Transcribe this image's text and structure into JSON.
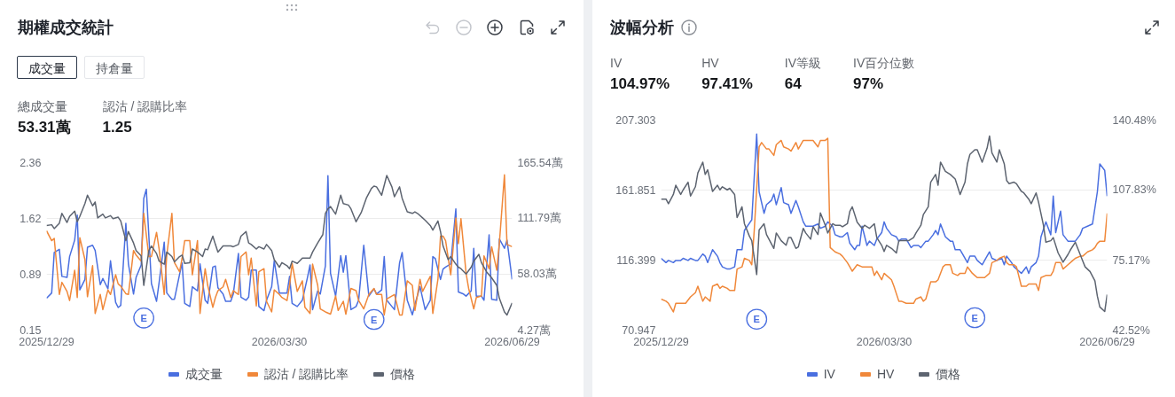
{
  "chart_data": [
    {
      "type": "line",
      "title": "期權成交統計",
      "annotations": [
        "成交量",
        "持倉量",
        "總成交量",
        "53.31萬",
        "認沽 / 認購比率",
        "1.25",
        {
          "text": "E",
          "x": "2026-02-05",
          "y": 0.31
        },
        {
          "text": "E",
          "x": "2026-05-06",
          "y": 0.29
        }
      ],
      "xlim": [
        "2025-12-29",
        "2026-06-29"
      ],
      "xticks": [
        {
          "value": "2025-12-29",
          "label": "2025/12/29"
        },
        {
          "value": "2026-03-30",
          "label": "2026/03/30"
        },
        {
          "value": "2026-06-29",
          "label": "2026/06/29"
        }
      ],
      "ylim": [
        0.15,
        2.36
      ],
      "yticks": [
        0.15,
        0.89,
        1.62,
        2.36
      ],
      "y2lim": [
        4.27,
        165.54
      ],
      "y2ticks": [
        {
          "value": 4.27,
          "label": "4.27萬"
        },
        {
          "value": 58.03,
          "label": "58.03萬"
        },
        {
          "value": 111.79,
          "label": "111.79萬"
        },
        {
          "value": 165.54,
          "label": "165.54萬"
        }
      ],
      "grid": "y",
      "legend": "bottom",
      "series": [
        {
          "name": "成交量",
          "color": "#4a6fe0",
          "axis": "y2",
          "x": [
            "2025-12-29",
            "2025-12-31",
            "2026-01-01",
            "2026-01-03",
            "2026-01-04",
            "2026-01-06",
            "2026-01-07",
            "2026-01-09",
            "2026-01-10",
            "2026-01-11",
            "2026-01-13",
            "2026-01-14",
            "2026-01-16",
            "2026-01-17",
            "2026-01-19",
            "2026-01-20",
            "2026-01-22",
            "2026-01-23",
            "2026-01-25",
            "2026-01-26",
            "2026-01-27",
            "2026-01-29",
            "2026-01-30",
            "2026-02-01",
            "2026-02-02",
            "2026-02-04",
            "2026-02-05",
            "2026-02-06",
            "2026-02-08",
            "2026-02-10",
            "2026-02-11",
            "2026-02-13",
            "2026-02-14",
            "2026-02-16",
            "2026-02-17",
            "2026-02-19",
            "2026-02-20",
            "2026-02-21",
            "2026-02-23",
            "2026-02-24",
            "2026-02-26",
            "2026-02-27",
            "2026-03-01",
            "2026-03-02",
            "2026-03-04",
            "2026-03-05",
            "2026-03-06",
            "2026-03-08",
            "2026-03-09",
            "2026-03-11",
            "2026-03-12",
            "2026-03-14",
            "2026-03-15",
            "2026-03-17",
            "2026-03-18",
            "2026-03-19",
            "2026-03-21",
            "2026-03-22",
            "2026-03-24",
            "2026-03-25",
            "2026-03-27",
            "2026-03-28",
            "2026-03-30",
            "2026-03-31",
            "2026-04-02",
            "2026-04-03",
            "2026-04-04",
            "2026-04-06",
            "2026-04-08",
            "2026-04-10",
            "2026-04-11",
            "2026-04-12",
            "2026-04-14",
            "2026-04-15",
            "2026-04-17",
            "2026-04-18",
            "2026-04-19",
            "2026-04-21",
            "2026-04-23",
            "2026-04-24",
            "2026-04-25",
            "2026-04-27",
            "2026-04-29",
            "2026-04-30",
            "2026-05-02",
            "2026-05-04",
            "2026-05-06",
            "2026-05-07",
            "2026-05-09",
            "2026-05-10",
            "2026-05-11",
            "2026-05-13",
            "2026-05-14",
            "2026-05-16",
            "2026-05-17",
            "2026-05-19",
            "2026-05-21",
            "2026-05-22",
            "2026-05-24",
            "2026-05-26",
            "2026-05-28",
            "2026-05-29",
            "2026-05-30",
            "2026-06-01",
            "2026-06-02",
            "2026-06-03",
            "2026-06-05",
            "2026-06-07",
            "2026-06-08",
            "2026-06-10",
            "2026-06-11",
            "2026-06-13",
            "2026-06-14",
            "2026-06-15",
            "2026-06-17",
            "2026-06-18",
            "2026-06-20",
            "2026-06-21",
            "2026-06-23",
            "2026-06-24",
            "2026-06-26",
            "2026-06-27",
            "2026-06-29"
          ],
          "values": [
            35,
            40,
            79,
            82,
            56,
            55,
            75,
            91,
            115,
            43,
            53,
            84,
            86,
            81,
            48,
            54,
            44,
            71,
            31,
            26,
            28,
            107,
            68,
            39,
            55,
            67,
            131,
            140,
            49,
            32,
            50,
            89,
            40,
            34,
            34,
            58,
            69,
            30,
            27,
            46,
            42,
            68,
            33,
            30,
            65,
            66,
            45,
            39,
            32,
            32,
            39,
            78,
            36,
            33,
            36,
            62,
            62,
            27,
            23,
            33,
            46,
            71,
            40,
            40,
            40,
            56,
            30,
            27,
            33,
            55,
            67,
            24,
            42,
            39,
            66,
            153,
            59,
            37,
            76,
            60,
            76,
            24,
            27,
            33,
            86,
            37,
            44,
            39,
            43,
            75,
            33,
            27,
            24,
            69,
            79,
            33,
            19,
            29,
            46,
            24,
            33,
            75,
            73,
            53,
            63,
            65,
            68,
            121,
            41,
            39,
            37,
            42,
            83,
            37,
            37,
            33,
            96,
            34,
            33,
            92,
            83,
            91,
            53
          ]
        },
        {
          "name": "認沽 / 認購比率",
          "color": "#f0883a",
          "x": [
            "2025-12-29",
            "2025-12-31",
            "2026-01-01",
            "2026-01-03",
            "2026-01-04",
            "2026-01-06",
            "2026-01-07",
            "2026-01-09",
            "2026-01-10",
            "2026-01-11",
            "2026-01-13",
            "2026-01-14",
            "2026-01-16",
            "2026-01-17",
            "2026-01-19",
            "2026-01-20",
            "2026-01-22",
            "2026-01-23",
            "2026-01-25",
            "2026-01-26",
            "2026-01-27",
            "2026-01-29",
            "2026-01-30",
            "2026-02-01",
            "2026-02-02",
            "2026-02-04",
            "2026-02-05",
            "2026-02-07",
            "2026-02-08",
            "2026-02-10",
            "2026-02-11",
            "2026-02-13",
            "2026-02-14",
            "2026-02-16",
            "2026-02-17",
            "2026-02-19",
            "2026-02-20",
            "2026-02-21",
            "2026-02-23",
            "2026-02-24",
            "2026-02-26",
            "2026-02-27",
            "2026-03-01",
            "2026-03-02",
            "2026-03-04",
            "2026-03-05",
            "2026-03-06",
            "2026-03-08",
            "2026-03-09",
            "2026-03-11",
            "2026-03-12",
            "2026-03-14",
            "2026-03-15",
            "2026-03-17",
            "2026-03-18",
            "2026-03-19",
            "2026-03-21",
            "2026-03-22",
            "2026-03-24",
            "2026-03-25",
            "2026-03-27",
            "2026-03-28",
            "2026-03-30",
            "2026-03-31",
            "2026-04-02",
            "2026-04-03",
            "2026-04-04",
            "2026-04-06",
            "2026-04-08",
            "2026-04-09",
            "2026-04-11",
            "2026-04-12",
            "2026-04-14",
            "2026-04-15",
            "2026-04-17",
            "2026-04-19",
            "2026-04-21",
            "2026-04-22",
            "2026-04-24",
            "2026-04-25",
            "2026-04-27",
            "2026-04-29",
            "2026-04-30",
            "2026-05-02",
            "2026-05-04",
            "2026-05-06",
            "2026-05-07",
            "2026-05-09",
            "2026-05-10",
            "2026-05-11",
            "2026-05-14",
            "2026-05-16",
            "2026-05-17",
            "2026-05-19",
            "2026-05-21",
            "2026-05-22",
            "2026-05-24",
            "2026-05-25",
            "2026-05-28",
            "2026-05-29",
            "2026-05-31",
            "2026-06-01",
            "2026-06-02",
            "2026-06-03",
            "2026-06-05",
            "2026-06-07",
            "2026-06-08",
            "2026-06-09",
            "2026-06-11",
            "2026-06-12",
            "2026-06-14",
            "2026-06-15",
            "2026-06-17",
            "2026-06-18",
            "2026-06-20",
            "2026-06-21",
            "2026-06-23",
            "2026-06-24",
            "2026-06-26",
            "2026-06-27",
            "2026-06-29"
          ],
          "values": [
            1.46,
            1.33,
            1.36,
            0.62,
            0.78,
            0.66,
            0.54,
            0.94,
            0.58,
            1.37,
            1.08,
            0.59,
            1.0,
            0.37,
            0.62,
            0.42,
            0.68,
            0.62,
            0.88,
            0.76,
            0.73,
            0.63,
            0.62,
            1.2,
            1.14,
            1.06,
            1.69,
            1.12,
            1.12,
            1.44,
            1.22,
            0.62,
            1.14,
            1.69,
            1.04,
            0.92,
            1.1,
            1.33,
            1.33,
            0.88,
            1.33,
            0.37,
            0.96,
            0.74,
            0.45,
            0.58,
            0.67,
            0.72,
            0.82,
            0.58,
            0.67,
            0.62,
            1.12,
            1.18,
            0.88,
            1.1,
            0.47,
            0.92,
            0.96,
            0.53,
            0.39,
            0.68,
            0.62,
            0.58,
            0.54,
            0.74,
            1.03,
            0.66,
            0.8,
            0.45,
            0.37,
            1.02,
            0.74,
            0.43,
            0.39,
            0.36,
            0.6,
            0.41,
            0.53,
            0.36,
            0.7,
            0.67,
            0.54,
            0.43,
            0.62,
            0.7,
            0.62,
            0.62,
            0.35,
            0.56,
            0.62,
            0.35,
            0.35,
            0.8,
            0.74,
            0.41,
            0.82,
            0.66,
            0.86,
            0.37,
            0.82,
            1.39,
            1.39,
            1.33,
            0.88,
            1.63,
            1.29,
            1.62,
            0.9,
            0.7,
            0.43,
            0.58,
            0.6,
            1.13,
            0.96,
            1.25,
            0.94,
            1.29,
            2.2,
            1.28,
            1.25
          ]
        },
        {
          "name": "價格",
          "color": "#5d6470",
          "x": [
            "2025-12-29",
            "2025-12-31",
            "2026-01-01",
            "2026-01-03",
            "2026-01-04",
            "2026-01-06",
            "2026-01-07",
            "2026-01-09",
            "2026-01-10",
            "2026-01-11",
            "2026-01-13",
            "2026-01-14",
            "2026-01-16",
            "2026-01-17",
            "2026-01-18",
            "2026-01-20",
            "2026-01-21",
            "2026-01-23",
            "2026-01-24",
            "2026-01-26",
            "2026-01-27",
            "2026-01-29",
            "2026-01-30",
            "2026-02-01",
            "2026-02-02",
            "2026-02-04",
            "2026-02-05",
            "2026-02-07",
            "2026-02-08",
            "2026-02-10",
            "2026-02-11",
            "2026-02-13",
            "2026-02-14",
            "2026-02-16",
            "2026-02-17",
            "2026-02-19",
            "2026-02-20",
            "2026-02-21",
            "2026-02-23",
            "2026-02-24",
            "2026-02-26",
            "2026-02-28",
            "2026-03-01",
            "2026-03-02",
            "2026-03-04",
            "2026-03-05",
            "2026-03-06",
            "2026-03-08",
            "2026-03-09",
            "2026-03-11",
            "2026-03-12",
            "2026-03-14",
            "2026-03-15",
            "2026-03-17",
            "2026-03-18",
            "2026-03-19",
            "2026-03-21",
            "2026-03-22",
            "2026-03-24",
            "2026-03-25",
            "2026-03-27",
            "2026-03-28",
            "2026-03-30",
            "2026-03-31",
            "2026-04-02",
            "2026-04-03",
            "2026-04-04",
            "2026-04-06",
            "2026-04-08",
            "2026-04-11",
            "2026-04-12",
            "2026-04-14",
            "2026-04-16",
            "2026-04-17",
            "2026-04-18",
            "2026-04-19",
            "2026-04-21",
            "2026-04-23",
            "2026-04-24",
            "2026-04-26",
            "2026-04-27",
            "2026-04-29",
            "2026-05-01",
            "2026-05-03",
            "2026-05-05",
            "2026-05-06",
            "2026-05-07",
            "2026-05-09",
            "2026-05-11",
            "2026-05-13",
            "2026-05-14",
            "2026-05-16",
            "2026-05-17",
            "2026-05-19",
            "2026-05-21",
            "2026-05-22",
            "2026-05-23",
            "2026-05-25",
            "2026-05-26",
            "2026-05-28",
            "2026-05-29",
            "2026-05-31",
            "2026-06-01",
            "2026-06-02",
            "2026-06-04",
            "2026-06-05",
            "2026-06-07",
            "2026-06-08",
            "2026-06-09",
            "2026-06-11",
            "2026-06-13",
            "2026-06-14",
            "2026-06-16",
            "2026-06-17",
            "2026-06-19",
            "2026-06-21",
            "2026-06-23",
            "2026-06-24",
            "2026-06-26",
            "2026-06-27",
            "2026-06-29"
          ],
          "values": [
            1.53,
            1.54,
            1.49,
            1.56,
            1.69,
            1.57,
            1.65,
            1.72,
            1.58,
            1.65,
            1.82,
            1.93,
            1.79,
            1.84,
            1.63,
            1.68,
            1.63,
            1.66,
            1.62,
            1.64,
            1.59,
            1.33,
            1.45,
            1.3,
            1.2,
            1.13,
            0.74,
            1.2,
            1.26,
            1.16,
            1.06,
            1.02,
            1.18,
            1.12,
            1.05,
            1.12,
            1.14,
            1.03,
            1.04,
            1.22,
            1.18,
            1.12,
            1.22,
            1.21,
            1.39,
            1.28,
            1.18,
            1.26,
            1.26,
            1.26,
            1.25,
            1.28,
            1.39,
            1.45,
            1.3,
            1.28,
            1.22,
            1.25,
            1.22,
            1.28,
            1.2,
            1.08,
            0.98,
            1.04,
            1.0,
            0.96,
            1.06,
            1.03,
            1.1,
            1.1,
            1.18,
            1.3,
            1.41,
            1.69,
            1.75,
            1.78,
            1.68,
            1.93,
            1.82,
            1.8,
            1.75,
            1.58,
            1.7,
            1.89,
            2.02,
            2.05,
            2.04,
            1.93,
            2.19,
            2.04,
            1.91,
            2.04,
            1.89,
            1.71,
            1.69,
            1.71,
            1.69,
            1.63,
            1.6,
            1.53,
            1.47,
            1.59,
            1.45,
            1.26,
            1.08,
            1.12,
            1.02,
            0.98,
            0.96,
            0.89,
            0.98,
            1.06,
            1.15,
            1.04,
            0.92,
            0.84,
            0.74,
            0.57,
            0.39,
            0.35,
            0.51
          ]
        }
      ]
    },
    {
      "type": "line",
      "title": "波幅分析",
      "annotations": [
        "IV",
        "104.97%",
        "HV",
        "97.41%",
        "IV等級",
        "64",
        "IV百分位數",
        "97%",
        {
          "text": "E",
          "x": "2026-02-06",
          "y": 78
        },
        {
          "text": "E",
          "x": "2026-05-06",
          "y": 79
        }
      ],
      "xlim": [
        "2025-12-29",
        "2026-06-29"
      ],
      "xticks": [
        {
          "value": "2025-12-29",
          "label": "2025/12/29"
        },
        {
          "value": "2026-03-30",
          "label": "2026/03/30"
        },
        {
          "value": "2026-06-29",
          "label": "2026/06/29"
        }
      ],
      "ylim": [
        70.947,
        207.303
      ],
      "yticks": [
        70.947,
        116.399,
        161.851,
        207.303
      ],
      "y2lim": [
        42.52,
        140.48
      ],
      "y2ticks": [
        {
          "value": 42.52,
          "label": "42.52%"
        },
        {
          "value": 75.17,
          "label": "75.17%"
        },
        {
          "value": 107.83,
          "label": "107.83%"
        },
        {
          "value": 140.48,
          "label": "140.48%"
        }
      ],
      "grid": "y",
      "legend": "bottom",
      "series": [
        {
          "name": "IV",
          "color": "#4a6fe0",
          "axis": "y2",
          "x": [
            "2025-12-29",
            "2025-12-31",
            "2026-01-01",
            "2026-01-03",
            "2026-01-04",
            "2026-01-06",
            "2026-01-07",
            "2026-01-09",
            "2026-01-10",
            "2026-01-12",
            "2026-01-13",
            "2026-01-15",
            "2026-01-16",
            "2026-01-17",
            "2026-01-19",
            "2026-01-21",
            "2026-01-22",
            "2026-01-23",
            "2026-01-25",
            "2026-01-26",
            "2026-01-28",
            "2026-01-29",
            "2026-01-31",
            "2026-02-01",
            "2026-02-04",
            "2026-02-06",
            "2026-02-07",
            "2026-02-09",
            "2026-02-10",
            "2026-02-12",
            "2026-02-13",
            "2026-02-14",
            "2026-02-16",
            "2026-02-17",
            "2026-02-19",
            "2026-02-20",
            "2026-02-22",
            "2026-02-23",
            "2026-02-25",
            "2026-02-26",
            "2026-02-28",
            "2026-03-01",
            "2026-03-03",
            "2026-03-04",
            "2026-03-06",
            "2026-03-07",
            "2026-03-09",
            "2026-03-10",
            "2026-03-12",
            "2026-03-13",
            "2026-03-15",
            "2026-03-16",
            "2026-03-18",
            "2026-03-19",
            "2026-03-20",
            "2026-03-21",
            "2026-03-23",
            "2026-03-24",
            "2026-03-26",
            "2026-03-27",
            "2026-03-29",
            "2026-03-30",
            "2026-03-31",
            "2026-04-02",
            "2026-04-04",
            "2026-04-05",
            "2026-04-06",
            "2026-04-08",
            "2026-04-10",
            "2026-04-11",
            "2026-04-13",
            "2026-04-14",
            "2026-04-16",
            "2026-04-17",
            "2026-04-19",
            "2026-04-20",
            "2026-04-21",
            "2026-04-22",
            "2026-04-24",
            "2026-04-26",
            "2026-04-27",
            "2026-04-28",
            "2026-04-30",
            "2026-05-01",
            "2026-05-03",
            "2026-05-04",
            "2026-05-06",
            "2026-05-07",
            "2026-05-09",
            "2026-05-10",
            "2026-05-12",
            "2026-05-13",
            "2026-05-15",
            "2026-05-17",
            "2026-05-18",
            "2026-05-19",
            "2026-05-21",
            "2026-05-22",
            "2026-05-24",
            "2026-05-25",
            "2026-05-27",
            "2026-05-28",
            "2026-05-29",
            "2026-05-31",
            "2026-06-01",
            "2026-06-02",
            "2026-06-04",
            "2026-06-06",
            "2026-06-07",
            "2026-06-08",
            "2026-06-10",
            "2026-06-11",
            "2026-06-13",
            "2026-06-15",
            "2026-06-16",
            "2026-06-18",
            "2026-06-19",
            "2026-06-21",
            "2026-06-23",
            "2026-06-25",
            "2026-06-26",
            "2026-06-28",
            "2026-06-29"
          ],
          "values": [
            76,
            74,
            75,
            74,
            75,
            75,
            76,
            75,
            76,
            75,
            75,
            78,
            77,
            74,
            80,
            77,
            74,
            72,
            71,
            71,
            72,
            80,
            80,
            89,
            94,
            134,
            107,
            97,
            101,
            103,
            106,
            101,
            109,
            102,
            101,
            97,
            103,
            100,
            93,
            91,
            91,
            91,
            92,
            90,
            91,
            93,
            91,
            87,
            86,
            86,
            88,
            83,
            80,
            82,
            82,
            91,
            82,
            84,
            82,
            85,
            88,
            93,
            90,
            87,
            86,
            84,
            85,
            85,
            81,
            82,
            82,
            81,
            84,
            84,
            87,
            89,
            87,
            92,
            86,
            84,
            84,
            80,
            80,
            78,
            74,
            77,
            77,
            75,
            73,
            75,
            79,
            76,
            75,
            76,
            73,
            77,
            74,
            72,
            70,
            69,
            72,
            69,
            72,
            74,
            77,
            86,
            93,
            87,
            105,
            88,
            98,
            87,
            84,
            84,
            84,
            87,
            90,
            91,
            92,
            107,
            120,
            117,
            105
          ]
        },
        {
          "name": "HV",
          "color": "#f0883a",
          "axis": "y2",
          "x": [
            "2025-12-29",
            "2025-12-31",
            "2026-01-01",
            "2026-01-03",
            "2026-01-04",
            "2026-01-06",
            "2026-01-08",
            "2026-01-10",
            "2026-01-12",
            "2026-01-13",
            "2026-01-15",
            "2026-01-16",
            "2026-01-18",
            "2026-01-19",
            "2026-01-21",
            "2026-01-22",
            "2026-01-23",
            "2026-01-25",
            "2026-01-26",
            "2026-01-28",
            "2026-01-29",
            "2026-01-31",
            "2026-02-01",
            "2026-02-03",
            "2026-02-04",
            "2026-02-05",
            "2026-02-07",
            "2026-02-08",
            "2026-02-10",
            "2026-02-11",
            "2026-02-13",
            "2026-02-14",
            "2026-02-16",
            "2026-02-17",
            "2026-02-19",
            "2026-02-20",
            "2026-02-22",
            "2026-02-23",
            "2026-02-25",
            "2026-02-26",
            "2026-02-28",
            "2026-03-01",
            "2026-03-03",
            "2026-03-04",
            "2026-03-06",
            "2026-03-07",
            "2026-03-08",
            "2026-03-10",
            "2026-03-12",
            "2026-03-13",
            "2026-03-15",
            "2026-03-16",
            "2026-03-17",
            "2026-03-19",
            "2026-03-21",
            "2026-03-22",
            "2026-03-24",
            "2026-03-25",
            "2026-03-26",
            "2026-03-27",
            "2026-03-29",
            "2026-03-30",
            "2026-03-31",
            "2026-04-02",
            "2026-04-03",
            "2026-04-05",
            "2026-04-06",
            "2026-04-08",
            "2026-04-11",
            "2026-04-12",
            "2026-04-14",
            "2026-04-15",
            "2026-04-16",
            "2026-04-18",
            "2026-04-20",
            "2026-04-21",
            "2026-04-23",
            "2026-04-24",
            "2026-04-26",
            "2026-04-27",
            "2026-04-29",
            "2026-04-30",
            "2026-05-02",
            "2026-05-03",
            "2026-05-05",
            "2026-05-06",
            "2026-05-07",
            "2026-05-09",
            "2026-05-10",
            "2026-05-12",
            "2026-05-13",
            "2026-05-15",
            "2026-05-16",
            "2026-05-18",
            "2026-05-19",
            "2026-05-20",
            "2026-05-22",
            "2026-05-23",
            "2026-05-25",
            "2026-05-27",
            "2026-05-28",
            "2026-05-31",
            "2026-06-01",
            "2026-06-02",
            "2026-06-04",
            "2026-06-06",
            "2026-06-07",
            "2026-06-08",
            "2026-06-10",
            "2026-06-11",
            "2026-06-13",
            "2026-06-15",
            "2026-06-16",
            "2026-06-18",
            "2026-06-19",
            "2026-06-21",
            "2026-06-23",
            "2026-06-24",
            "2026-06-25",
            "2026-06-26",
            "2026-06-28",
            "2026-06-29"
          ],
          "values": [
            57,
            56,
            55,
            51,
            55,
            55,
            55,
            58,
            60,
            63,
            56,
            58,
            56,
            63,
            64,
            62,
            63,
            62,
            61,
            61,
            71,
            72,
            76,
            75,
            73,
            89,
            128,
            130,
            127,
            127,
            124,
            129,
            131,
            128,
            127,
            126,
            130,
            127,
            131,
            131,
            131,
            131,
            128,
            131,
            131,
            132,
            81,
            79,
            78,
            77,
            74,
            72,
            70,
            73,
            72,
            72,
            72,
            72,
            68,
            70,
            66,
            69,
            68,
            66,
            63,
            56,
            56,
            55,
            55,
            57,
            58,
            56,
            57,
            65,
            65,
            66,
            72,
            73,
            73,
            69,
            68,
            69,
            69,
            72,
            69,
            68,
            67,
            67,
            67,
            69,
            74,
            75,
            76,
            77,
            74,
            73,
            73,
            72,
            63,
            63,
            64,
            64,
            61,
            67,
            68,
            68,
            70,
            74,
            74,
            71,
            73,
            75,
            76,
            77,
            77,
            79,
            80,
            81,
            83,
            84,
            84,
            97
          ]
        },
        {
          "name": "價格",
          "color": "#5d6470",
          "x": [
            "2025-12-29",
            "2025-12-31",
            "2026-01-01",
            "2026-01-03",
            "2026-01-04",
            "2026-01-06",
            "2026-01-07",
            "2026-01-09",
            "2026-01-10",
            "2026-01-12",
            "2026-01-13",
            "2026-01-15",
            "2026-01-16",
            "2026-01-17",
            "2026-01-19",
            "2026-01-21",
            "2026-01-22",
            "2026-01-23",
            "2026-01-25",
            "2026-01-26",
            "2026-01-28",
            "2026-01-29",
            "2026-01-31",
            "2026-02-01",
            "2026-02-03",
            "2026-02-04",
            "2026-02-06",
            "2026-02-07",
            "2026-02-09",
            "2026-02-10",
            "2026-02-12",
            "2026-02-13",
            "2026-02-14",
            "2026-02-16",
            "2026-02-18",
            "2026-02-19",
            "2026-02-20",
            "2026-02-22",
            "2026-02-23",
            "2026-02-25",
            "2026-02-26",
            "2026-02-28",
            "2026-03-01",
            "2026-03-03",
            "2026-03-04",
            "2026-03-06",
            "2026-03-07",
            "2026-03-09",
            "2026-03-10",
            "2026-03-12",
            "2026-03-13",
            "2026-03-15",
            "2026-03-16",
            "2026-03-17",
            "2026-03-19",
            "2026-03-21",
            "2026-03-22",
            "2026-03-24",
            "2026-03-26",
            "2026-03-27",
            "2026-03-29",
            "2026-03-30",
            "2026-03-31",
            "2026-04-02",
            "2026-04-04",
            "2026-04-05",
            "2026-04-06",
            "2026-04-08",
            "2026-04-09",
            "2026-04-11",
            "2026-04-12",
            "2026-04-14",
            "2026-04-15",
            "2026-04-17",
            "2026-04-18",
            "2026-04-20",
            "2026-04-21",
            "2026-04-22",
            "2026-04-24",
            "2026-04-26",
            "2026-04-28",
            "2026-04-29",
            "2026-04-30",
            "2026-05-02",
            "2026-05-03",
            "2026-05-04",
            "2026-05-06",
            "2026-05-07",
            "2026-05-09",
            "2026-05-11",
            "2026-05-12",
            "2026-05-13",
            "2026-05-15",
            "2026-05-16",
            "2026-05-18",
            "2026-05-19",
            "2026-05-20",
            "2026-05-22",
            "2026-05-23",
            "2026-05-25",
            "2026-05-26",
            "2026-05-28",
            "2026-05-29",
            "2026-05-31",
            "2026-06-01",
            "2026-06-03",
            "2026-06-04",
            "2026-06-06",
            "2026-06-07",
            "2026-06-09",
            "2026-06-10",
            "2026-06-11",
            "2026-06-13",
            "2026-06-14",
            "2026-06-16",
            "2026-06-17",
            "2026-06-19",
            "2026-06-20",
            "2026-06-22",
            "2026-06-24",
            "2026-06-25",
            "2026-06-26",
            "2026-06-28",
            "2026-06-29"
          ],
          "values": [
            156,
            156,
            153,
            159,
            165,
            159,
            162,
            167,
            158,
            164,
            173,
            180,
            172,
            175,
            161,
            165,
            162,
            164,
            162,
            163,
            159,
            144,
            151,
            140,
            132,
            129,
            107,
            136,
            140,
            133,
            127,
            124,
            134,
            129,
            126,
            131,
            131,
            124,
            125,
            137,
            134,
            130,
            138,
            133,
            147,
            139,
            134,
            140,
            139,
            139,
            138,
            140,
            148,
            151,
            141,
            137,
            139,
            137,
            140,
            131,
            126,
            122,
            126,
            124,
            121,
            129,
            129,
            129,
            129,
            131,
            134,
            139,
            146,
            151,
            167,
            172,
            165,
            180,
            174,
            172,
            169,
            164,
            159,
            167,
            179,
            185,
            188,
            188,
            180,
            189,
            197,
            186,
            180,
            188,
            179,
            168,
            166,
            167,
            166,
            161,
            160,
            156,
            153,
            160,
            154,
            139,
            128,
            129,
            131,
            121,
            118,
            115,
            120,
            123,
            128,
            124,
            116,
            112,
            109,
            103,
            93,
            86,
            83,
            94
          ]
        }
      ]
    }
  ]
}
